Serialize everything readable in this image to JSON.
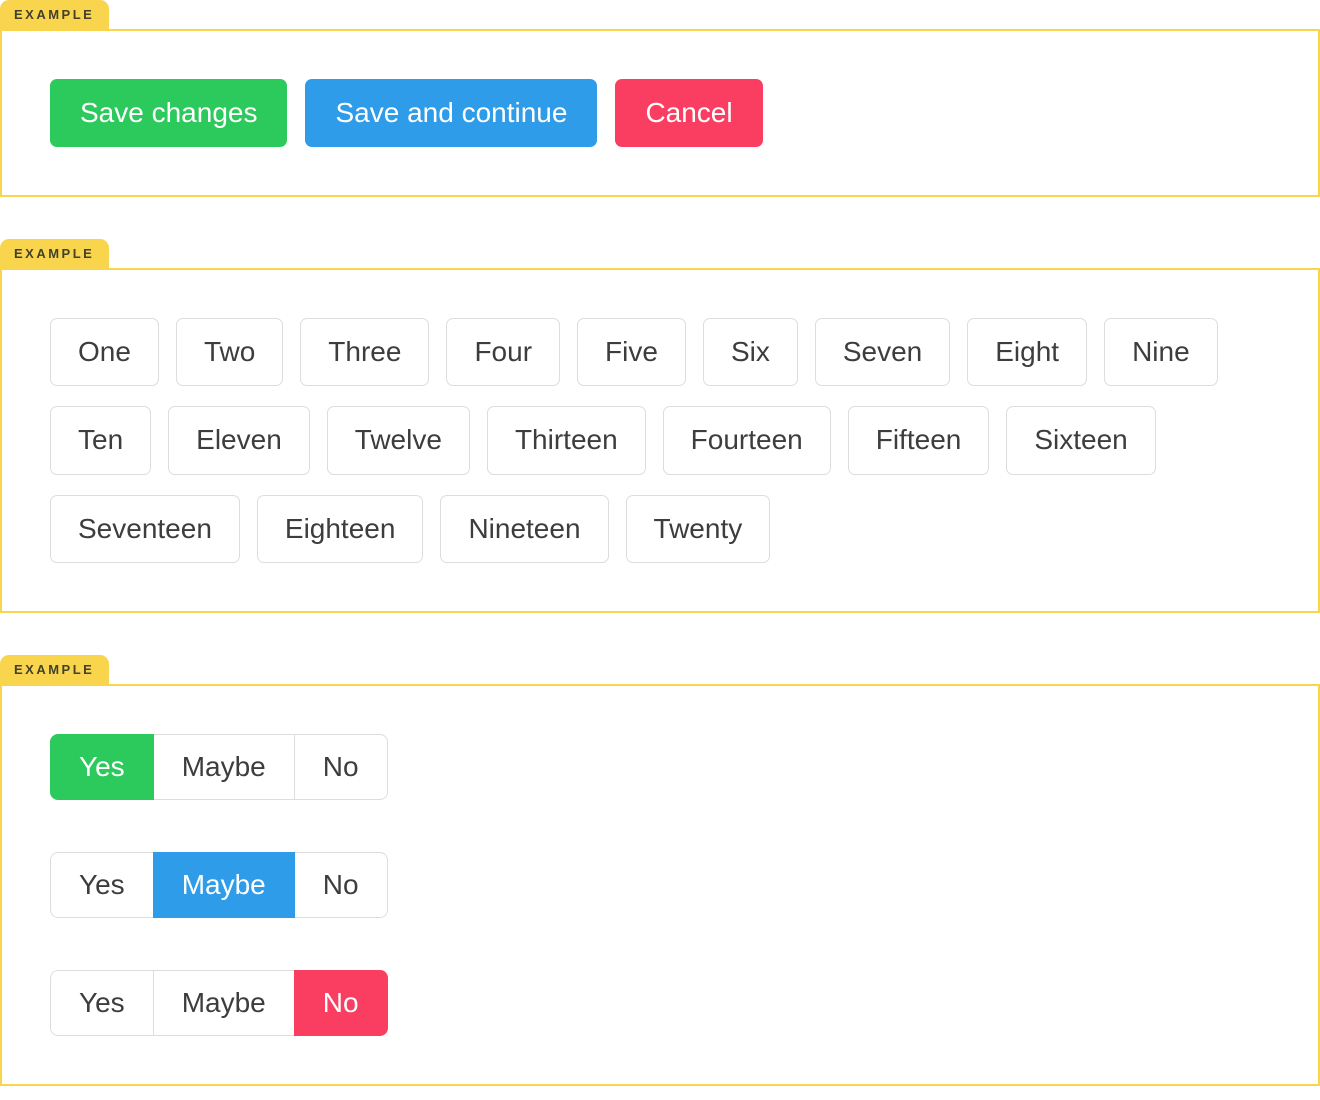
{
  "colors": {
    "accent_yellow": "#f9d54e",
    "success_green": "#2cca5c",
    "primary_blue": "#2e9ce9",
    "danger_red": "#fa3e62"
  },
  "sections": [
    {
      "tag": "EXAMPLE",
      "type": "action-buttons",
      "buttons": [
        {
          "label": "Save changes",
          "variant": "success"
        },
        {
          "label": "Save and continue",
          "variant": "primary"
        },
        {
          "label": "Cancel",
          "variant": "danger"
        }
      ]
    },
    {
      "tag": "EXAMPLE",
      "type": "button-grid",
      "buttons": [
        "One",
        "Two",
        "Three",
        "Four",
        "Five",
        "Six",
        "Seven",
        "Eight",
        "Nine",
        "Ten",
        "Eleven",
        "Twelve",
        "Thirteen",
        "Fourteen",
        "Fifteen",
        "Sixteen",
        "Seventeen",
        "Eighteen",
        "Nineteen",
        "Twenty"
      ]
    },
    {
      "tag": "EXAMPLE",
      "type": "segmented-controls",
      "groups": [
        {
          "options": [
            "Yes",
            "Maybe",
            "No"
          ],
          "selected_index": 0,
          "selected_label": "Yes",
          "selected_variant": "success"
        },
        {
          "options": [
            "Yes",
            "Maybe",
            "No"
          ],
          "selected_index": 1,
          "selected_label": "Maybe",
          "selected_variant": "primary"
        },
        {
          "options": [
            "Yes",
            "Maybe",
            "No"
          ],
          "selected_index": 2,
          "selected_label": "No",
          "selected_variant": "danger"
        }
      ]
    }
  ]
}
